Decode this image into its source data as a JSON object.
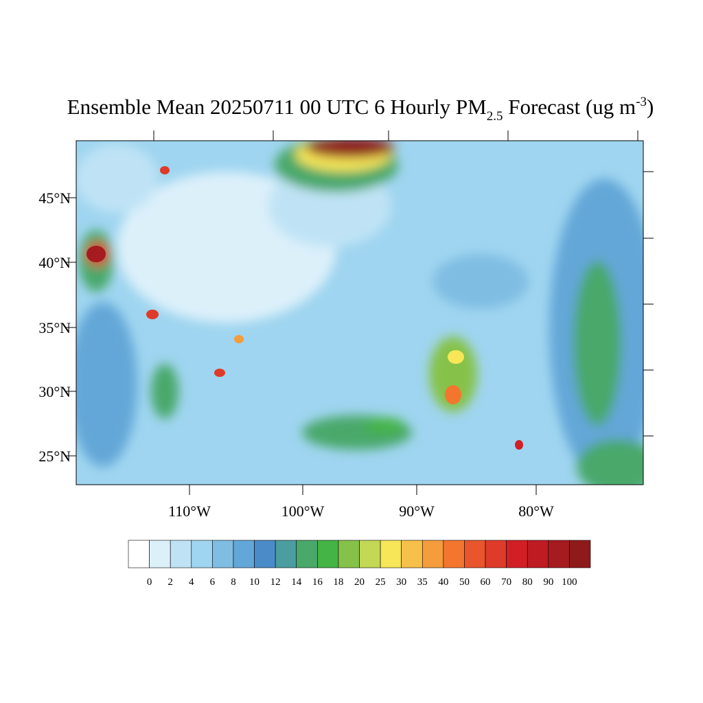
{
  "title": {
    "main": "Ensemble Mean 20250711 00 UTC 6 Hourly PM",
    "sub": "2.5",
    "after": " Forecast (ug m",
    "sup": "-3",
    "end": ")"
  },
  "lat_labels": [
    "45°N",
    "40°N",
    "35°N",
    "30°N",
    "25°N"
  ],
  "lon_labels": [
    "110°W",
    "100°W",
    "90°W",
    "80°W"
  ],
  "colorbar": {
    "levels": [
      0,
      2,
      4,
      6,
      8,
      10,
      12,
      14,
      16,
      18,
      20,
      25,
      30,
      35,
      40,
      50,
      60,
      70,
      80,
      90,
      100
    ],
    "colors": [
      "#ffffff",
      "#dcf0fa",
      "#bfe3f5",
      "#9fd5f0",
      "#80bde3",
      "#63a7d8",
      "#4a8cc8",
      "#4b9da0",
      "#4aa86a",
      "#45b446",
      "#86c24a",
      "#c3d854",
      "#f6e658",
      "#f7c04a",
      "#f59c3c",
      "#f4762e",
      "#e9552c",
      "#df3b2a",
      "#d21f26",
      "#be1b22",
      "#a51b1f",
      "#8e1a1a"
    ]
  }
}
